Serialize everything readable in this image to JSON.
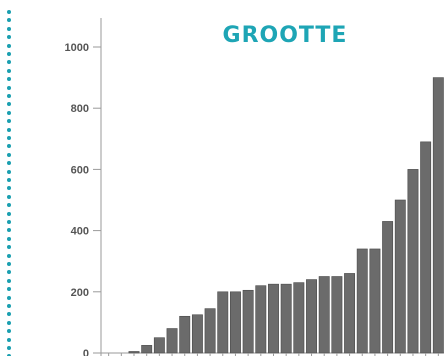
{
  "decoration": {
    "dot_color": "#1a9fb0",
    "dot_icon": "dotted-line-icon"
  },
  "colors": {
    "bar": "#6b6b6b",
    "bar_edge": "#4a4a4a",
    "axis": "#9a9a9a",
    "title": "#1ea5b5"
  },
  "chart_data": {
    "type": "bar",
    "title": "GROOTTE",
    "xlabel": "",
    "ylabel": "",
    "ylim": [
      0,
      1000
    ],
    "yticks": [
      0,
      200,
      400,
      600,
      800,
      1000
    ],
    "grid": false,
    "values": [
      0,
      0,
      5,
      25,
      50,
      80,
      120,
      125,
      145,
      200,
      200,
      205,
      220,
      225,
      225,
      230,
      240,
      250,
      250,
      260,
      340,
      340,
      430,
      500,
      600,
      690,
      900
    ]
  }
}
